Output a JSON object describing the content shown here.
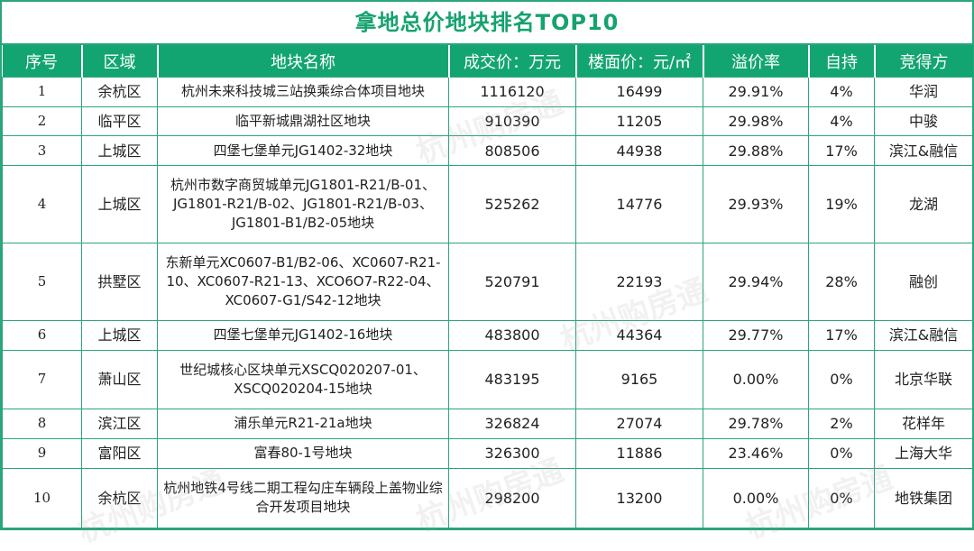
{
  "title": "拿地总价地块排名TOP10",
  "headers": [
    "序号",
    "区域",
    "地块名称",
    "成交价：万元",
    "楼面价：元/㎡",
    "溢价率",
    "自持",
    "竞得方"
  ],
  "rows": [
    {
      "no": "1",
      "district": "余杭区",
      "name": "杭州未来科技城三站换乘综合体项目地块",
      "price": "1116120",
      "floor_price": "16499",
      "premium": "29.91%",
      "self_hold": "4%",
      "winner": "华润"
    },
    {
      "no": "2",
      "district": "临平区",
      "name": "临平新城鼎湖社区地块",
      "price": "910390",
      "floor_price": "11205",
      "premium": "29.98%",
      "self_hold": "4%",
      "winner": "中骏"
    },
    {
      "no": "3",
      "district": "上城区",
      "name": "四堡七堡单元JG1402-32地块",
      "price": "808506",
      "floor_price": "44938",
      "premium": "29.88%",
      "self_hold": "17%",
      "winner": "滨江&融信"
    },
    {
      "no": "4",
      "district": "上城区",
      "name": "杭州市数字商贸城单元JG1801-R21/B-01、JG1801-R21/B-02、JG1801-R21/B-03、JG1801-B1/B2-05地块",
      "price": "525262",
      "floor_price": "14776",
      "premium": "29.93%",
      "self_hold": "19%",
      "winner": "龙湖"
    },
    {
      "no": "5",
      "district": "拱墅区",
      "name": "东新单元XC0607-B1/B2-06、XC0607-R21-10、XC0607-R21-13、XCO6O7-R22-04、XC0607-G1/S42-12地块",
      "price": "520791",
      "floor_price": "22193",
      "premium": "29.94%",
      "self_hold": "28%",
      "winner": "融创"
    },
    {
      "no": "6",
      "district": "上城区",
      "name": "四堡七堡单元JG1402-16地块",
      "price": "483800",
      "floor_price": "44364",
      "premium": "29.77%",
      "self_hold": "17%",
      "winner": "滨江&融信"
    },
    {
      "no": "7",
      "district": "萧山区",
      "name": "世纪城核心区块单元XSCQ020207-01、XSCQ020204-15地块",
      "price": "483195",
      "floor_price": "9165",
      "premium": "0.00%",
      "self_hold": "0%",
      "winner": "北京华联"
    },
    {
      "no": "8",
      "district": "滨江区",
      "name": "浦乐单元R21-21a地块",
      "price": "326824",
      "floor_price": "27074",
      "premium": "29.78%",
      "self_hold": "2%",
      "winner": "花样年"
    },
    {
      "no": "9",
      "district": "富阳区",
      "name": "富春80-1号地块",
      "price": "326300",
      "floor_price": "11886",
      "premium": "23.46%",
      "self_hold": "0%",
      "winner": "上海大华"
    },
    {
      "no": "10",
      "district": "余杭区",
      "name": "杭州地铁4号线二期工程勾庄车辆段上盖物业综合开发项目地块",
      "price": "298200",
      "floor_price": "13200",
      "premium": "0.00%",
      "self_hold": "0%",
      "winner": "地铁集团"
    }
  ],
  "watermark": "杭州购房通",
  "colors": {
    "accent": "#13a571",
    "border": "#2aa57d",
    "title": "#16a26f"
  }
}
